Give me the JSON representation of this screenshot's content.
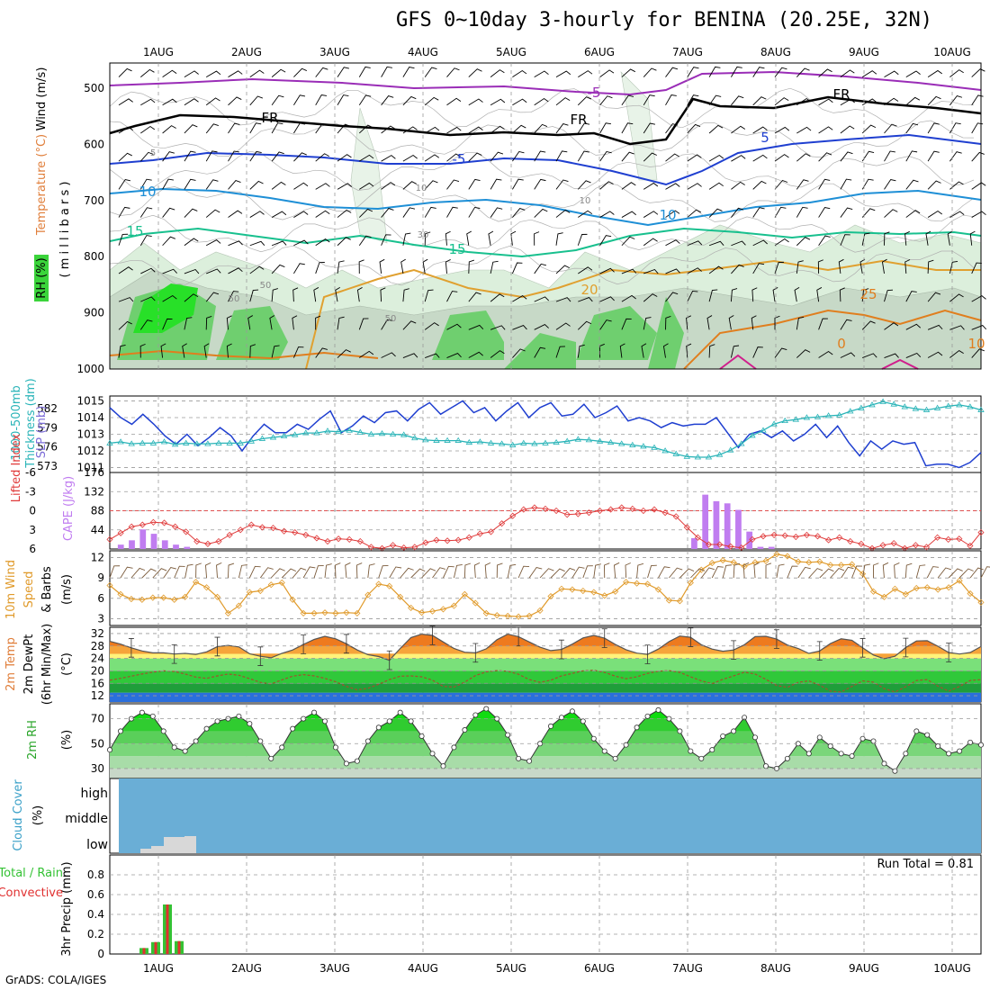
{
  "title": "GFS 0~10day 3-hourly for BENINA (20.25E, 32N)",
  "credit": "GrADS: COLA/IGES",
  "colors": {
    "rh_green": "#3bd43b",
    "temp_purple": "#9a2db7",
    "slp_blue": "#1f3fd0",
    "thick_cyan": "#2ab4b8",
    "cape_purple": "#c07df0",
    "li_red": "#e03a3a",
    "wind_orange": "#e09a2a",
    "cloud_blue": "#6aaed6",
    "precip_green": "#34c234",
    "precip_red": "#e03030"
  },
  "chart_data": [
    {
      "panel": "upper-air",
      "type": "contour",
      "ylabel_parts": [
        "RH (%)",
        "Temperature (°C)",
        "Wind (m/s)"
      ],
      "y_unit": "( m i l l i b a r s )",
      "y_ticks": [
        500,
        600,
        700,
        800,
        900,
        1000
      ],
      "x_ticks": [
        "1AUG",
        "2AUG",
        "3AUG",
        "4AUG",
        "5AUG",
        "6AUG",
        "7AUG",
        "8AUG",
        "9AUG",
        "10AUG"
      ],
      "contour_labels": [
        "-5",
        "FR",
        "FR",
        "FR",
        "-5",
        "5",
        "5",
        "10",
        "10",
        "15",
        "15",
        "20",
        "25",
        "10",
        "10",
        "30",
        "50",
        "50",
        "50",
        "0",
        "10"
      ]
    },
    {
      "panel": "slp-thickness",
      "type": "line",
      "ylabel_left": "Thickness (dm)",
      "ylabel_left2": "1000-500mb",
      "ylabel_right": "SLP (mb)",
      "left_ticks": [
        573,
        576,
        579,
        582
      ],
      "right_ticks": [
        1011,
        1012,
        1013,
        1014,
        1015
      ],
      "series": [
        {
          "name": "SLP (mb)",
          "values": [
            1014.6,
            1014.0,
            1013.6,
            1014.2,
            1013.6,
            1012.9,
            1012.4,
            1013.0,
            1012.3,
            1012.8,
            1013.4,
            1012.9,
            1012.0,
            1012.9,
            1013.6,
            1013.1,
            1013.1,
            1013.6,
            1013.3,
            1013.9,
            1014.4,
            1013.1,
            1013.5,
            1014.1,
            1013.7,
            1014.3,
            1014.4,
            1013.8,
            1014.5,
            1014.9,
            1014.2,
            1014.6,
            1015.0,
            1014.3,
            1014.6,
            1013.8,
            1014.4,
            1014.9,
            1014.0,
            1014.6,
            1014.9,
            1014.1,
            1014.2,
            1014.8,
            1014.0,
            1014.3,
            1014.7,
            1013.8,
            1014.0,
            1013.8,
            1013.4,
            1013.7,
            1013.5,
            1013.6,
            1013.6,
            1014.0,
            1013.1,
            1012.2,
            1013.0,
            1013.2,
            1012.8,
            1013.2,
            1012.6,
            1013.0,
            1013.6,
            1012.8,
            1013.5,
            1012.5,
            1011.7,
            1012.6,
            1012.1,
            1012.6,
            1012.4,
            1012.5,
            1011.1,
            1011.2,
            1011.2,
            1011.0,
            1011.3,
            1011.9
          ]
        },
        {
          "name": "Thickness (dm)",
          "values": [
            576.6,
            576.8,
            576.5,
            576.6,
            576.6,
            576.8,
            576.4,
            576.6,
            576.5,
            576.5,
            576.6,
            576.6,
            576.6,
            576.9,
            577.3,
            577.5,
            577.7,
            577.9,
            578.2,
            578.2,
            578.5,
            578.4,
            578.6,
            578.3,
            578.0,
            578.1,
            578.0,
            577.9,
            577.4,
            577.1,
            577.0,
            577.0,
            577.0,
            576.7,
            576.8,
            576.6,
            576.5,
            576.3,
            576.6,
            576.5,
            576.6,
            576.7,
            576.9,
            577.2,
            577.1,
            576.9,
            576.7,
            576.5,
            576.3,
            576.1,
            575.9,
            575.4,
            574.9,
            574.5,
            574.4,
            574.4,
            574.8,
            575.5,
            576.5,
            577.8,
            578.6,
            579.6,
            580.1,
            580.3,
            580.6,
            580.7,
            580.9,
            581.0,
            581.6,
            582.1,
            582.6,
            583.1,
            582.7,
            582.3,
            582.0,
            581.8,
            582.1,
            582.4,
            582.6,
            582.3,
            581.8
          ]
        }
      ]
    },
    {
      "panel": "cape-li",
      "type": "bar",
      "ylabel_left": "Lifted Index",
      "ylabel_right": "CAPE (J/kg)",
      "li_ticks": [
        6,
        3,
        0,
        -3,
        -6
      ],
      "cape_ticks": [
        44,
        88,
        132,
        176
      ],
      "series": [
        {
          "name": "CAPE (J/kg)",
          "values": [
            0,
            10,
            20,
            45,
            35,
            20,
            10,
            5,
            0,
            0,
            0,
            0,
            0,
            0,
            0,
            0,
            0,
            0,
            0,
            0,
            0,
            0,
            0,
            0,
            0,
            0,
            0,
            0,
            0,
            0,
            0,
            0,
            0,
            0,
            0,
            0,
            0,
            0,
            0,
            0,
            0,
            0,
            0,
            0,
            0,
            0,
            0,
            0,
            0,
            0,
            0,
            0,
            0,
            25,
            125,
            110,
            105,
            90,
            40,
            5,
            5,
            0,
            0,
            0,
            0,
            0,
            0,
            0,
            0,
            0,
            0,
            0,
            0,
            0,
            0,
            0,
            0,
            0,
            0,
            0
          ]
        },
        {
          "name": "Lifted Index",
          "values": [
            4.5,
            3.5,
            2.5,
            2.2,
            1.8,
            1.9,
            2.5,
            3.3,
            4.8,
            5.2,
            4.8,
            3.8,
            3.0,
            2.2,
            2.6,
            2.7,
            3.2,
            3.4,
            3.8,
            4.3,
            4.8,
            4.4,
            4.5,
            4.8,
            5.7,
            5.9,
            5.4,
            5.8,
            5.7,
            5.0,
            4.6,
            4.7,
            4.6,
            4.2,
            3.6,
            3.3,
            2.0,
            0.8,
            -0.2,
            -0.5,
            -0.3,
            0.0,
            0.6,
            0.5,
            0.3,
            0.0,
            -0.2,
            -0.5,
            -0.3,
            0.0,
            -0.2,
            0.3,
            0.9,
            2.6,
            4.2,
            5.3,
            5.3,
            5.6,
            5.8,
            4.5,
            4.0,
            3.8,
            3.9,
            4.1,
            3.8,
            4.0,
            4.6,
            4.2,
            4.8,
            5.2,
            5.9,
            5.4,
            5.1,
            5.9,
            5.4,
            5.7,
            4.2,
            4.5,
            4.4,
            5.5,
            3.4
          ]
        }
      ]
    },
    {
      "panel": "wind",
      "type": "line",
      "ylabel": "10m Wind Speed (m/s) & Barbs",
      "y_ticks": [
        3,
        6,
        9,
        12
      ],
      "series": [
        {
          "name": "10m Wind Speed",
          "values": [
            7.9,
            6.6,
            5.9,
            5.8,
            6.1,
            6.1,
            5.8,
            6.2,
            8.4,
            7.6,
            6.2,
            3.8,
            4.9,
            6.9,
            7.1,
            8.0,
            8.3,
            5.8,
            3.8,
            3.8,
            3.9,
            3.8,
            3.9,
            3.8,
            6.5,
            8.1,
            7.8,
            6.2,
            4.6,
            3.9,
            4.1,
            4.4,
            4.9,
            6.6,
            5.3,
            3.8,
            3.5,
            3.4,
            3.3,
            3.4,
            4.2,
            6.3,
            7.4,
            7.3,
            7.1,
            6.9,
            6.4,
            7.0,
            8.4,
            8.2,
            8.1,
            7.3,
            5.7,
            5.6,
            8.3,
            10.2,
            11.2,
            11.6,
            11.3,
            10.7,
            11.3,
            11.5,
            12.5,
            12.2,
            11.4,
            11.3,
            11.4,
            10.9,
            10.9,
            11.0,
            9.6,
            7.0,
            6.2,
            7.4,
            6.6,
            7.5,
            7.6,
            7.3,
            7.6,
            8.6,
            6.7,
            5.4
          ]
        }
      ]
    },
    {
      "panel": "temp-dewpt",
      "type": "area",
      "ylabel": "2m Temp / 2m DewPt (6hr Min/Max) (°C)",
      "y_ticks": [
        12,
        16,
        20,
        24,
        28,
        32
      ],
      "series": [
        {
          "name": "2m Temp",
          "values": [
            29.5,
            28.6,
            27.4,
            26.4,
            25.8,
            25.8,
            25.4,
            25.6,
            25.3,
            26.1,
            27.8,
            28.2,
            27.7,
            25.5,
            24.7,
            24.2,
            25.6,
            26.7,
            28.5,
            30.1,
            31.1,
            30.3,
            28.7,
            26.7,
            25.2,
            24.6,
            23.4,
            27.2,
            30.7,
            31.8,
            31.4,
            29.3,
            27.2,
            26.0,
            25.8,
            27.1,
            30.0,
            31.8,
            31.0,
            29.3,
            27.6,
            26.5,
            26.9,
            28.6,
            30.6,
            31.4,
            30.5,
            28.5,
            26.8,
            25.7,
            25.3,
            27.0,
            29.4,
            31.2,
            30.8,
            28.4,
            27.0,
            26.3,
            26.7,
            28.4,
            31.0,
            31.1,
            30.2,
            28.3,
            27.2,
            25.6,
            26.4,
            28.8,
            30.3,
            29.8,
            27.4,
            25.1,
            23.9,
            24.7,
            27.5,
            29.6,
            29.7,
            27.9,
            25.9,
            25.4,
            25.9,
            27.8
          ]
        },
        {
          "name": "2m DewPt",
          "values": [
            17.0,
            17.6,
            18.3,
            19.0,
            19.6,
            20.0,
            19.8,
            19.0,
            18.0,
            17.6,
            18.4,
            19.0,
            18.6,
            17.5,
            16.3,
            15.8,
            17.1,
            18.3,
            18.8,
            18.4,
            17.6,
            16.5,
            15.0,
            13.9,
            14.4,
            15.7,
            17.2,
            18.3,
            18.4,
            18.1,
            17.0,
            15.0,
            14.8,
            16.4,
            18.5,
            19.7,
            20.1,
            19.9,
            18.9,
            17.2,
            16.3,
            17.0,
            18.4,
            19.2,
            20.0,
            20.2,
            19.5,
            18.3,
            17.5,
            18.1,
            19.2,
            19.9,
            20.1,
            19.5,
            18.1,
            16.8,
            15.9,
            17.3,
            18.4,
            19.6,
            19.0,
            17.3,
            15.3,
            14.7,
            16.3,
            16.8,
            15.4,
            13.5,
            13.2,
            15.0,
            16.8,
            16.4,
            14.3,
            13.2,
            14.9,
            16.9,
            17.2,
            15.1,
            13.5,
            15.0,
            16.9,
            17.2
          ]
        }
      ]
    },
    {
      "panel": "rh",
      "type": "area",
      "ylabel": "2m RH (%)",
      "y_ticks": [
        30,
        50,
        70
      ],
      "series": [
        {
          "name": "2m RH",
          "values": [
            45,
            60,
            70,
            75,
            72,
            60,
            47,
            44,
            52,
            62,
            68,
            70,
            72,
            66,
            52,
            38,
            47,
            62,
            70,
            75,
            68,
            47,
            34,
            36,
            52,
            63,
            68,
            75,
            68,
            56,
            42,
            32,
            47,
            61,
            73,
            78,
            70,
            57,
            38,
            36,
            50,
            64,
            71,
            76,
            68,
            54,
            44,
            38,
            49,
            63,
            72,
            77,
            70,
            60,
            44,
            38,
            45,
            56,
            60,
            71,
            55,
            32,
            30,
            38,
            50,
            42,
            55,
            48,
            42,
            40,
            54,
            52,
            34,
            28,
            42,
            60,
            57,
            48,
            42,
            44,
            51,
            49
          ]
        }
      ]
    },
    {
      "panel": "cloud",
      "type": "area",
      "ylabel": "Cloud Cover (%)",
      "y_ticks": [
        "high",
        "middle",
        "low"
      ]
    },
    {
      "panel": "precip",
      "type": "bar",
      "ylabel": "3hr Precip (mm)",
      "legend_left": [
        "Total / Rain",
        "Convective"
      ],
      "annotation": "Run Total = 0.81",
      "y_ticks": [
        0,
        0.2,
        0.4,
        0.6,
        0.8
      ],
      "series": [
        {
          "name": "Total / Rain",
          "values": [
            0.06,
            0.12,
            0.5,
            0.13
          ]
        },
        {
          "name": "Convective",
          "values": [
            0.06,
            0.12,
            0.5,
            0.13
          ]
        }
      ]
    }
  ]
}
